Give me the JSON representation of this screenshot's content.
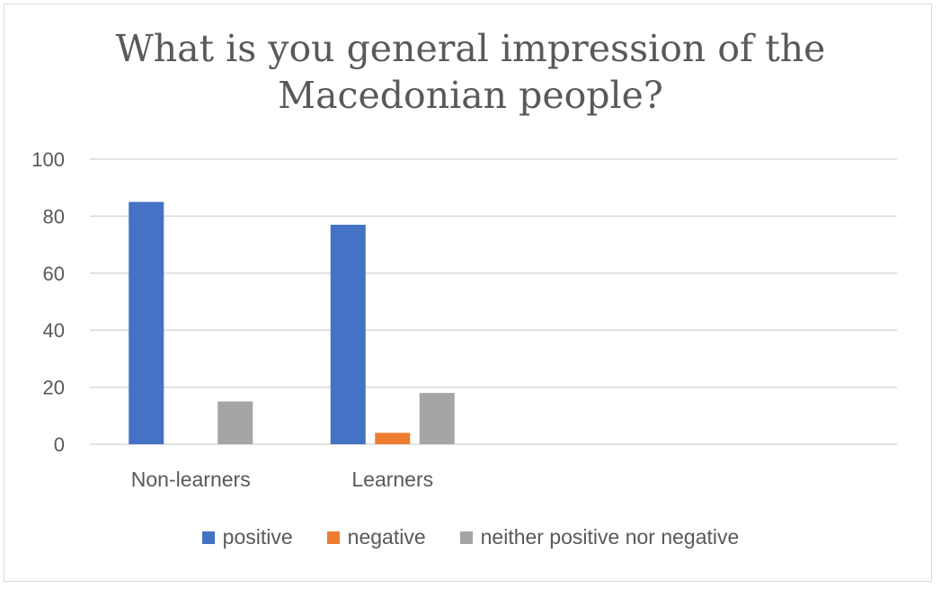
{
  "chart_data": {
    "type": "bar",
    "title_lines": [
      "What is you general impression of the",
      "Macedonian people?"
    ],
    "categories": [
      "Non-learners",
      "Learners"
    ],
    "series": [
      {
        "name": "positive",
        "color": "#4472c4",
        "values": [
          85,
          77
        ]
      },
      {
        "name": "negative",
        "color": "#ed7d31",
        "values": [
          0,
          4
        ]
      },
      {
        "name": "neither positive nor negative",
        "color": "#a5a5a5",
        "values": [
          15,
          18
        ]
      }
    ],
    "y_ticks": [
      "0",
      "20",
      "40",
      "60",
      "80",
      "100"
    ],
    "ylim": [
      0,
      100
    ],
    "grid": true,
    "legend_position": "bottom"
  }
}
